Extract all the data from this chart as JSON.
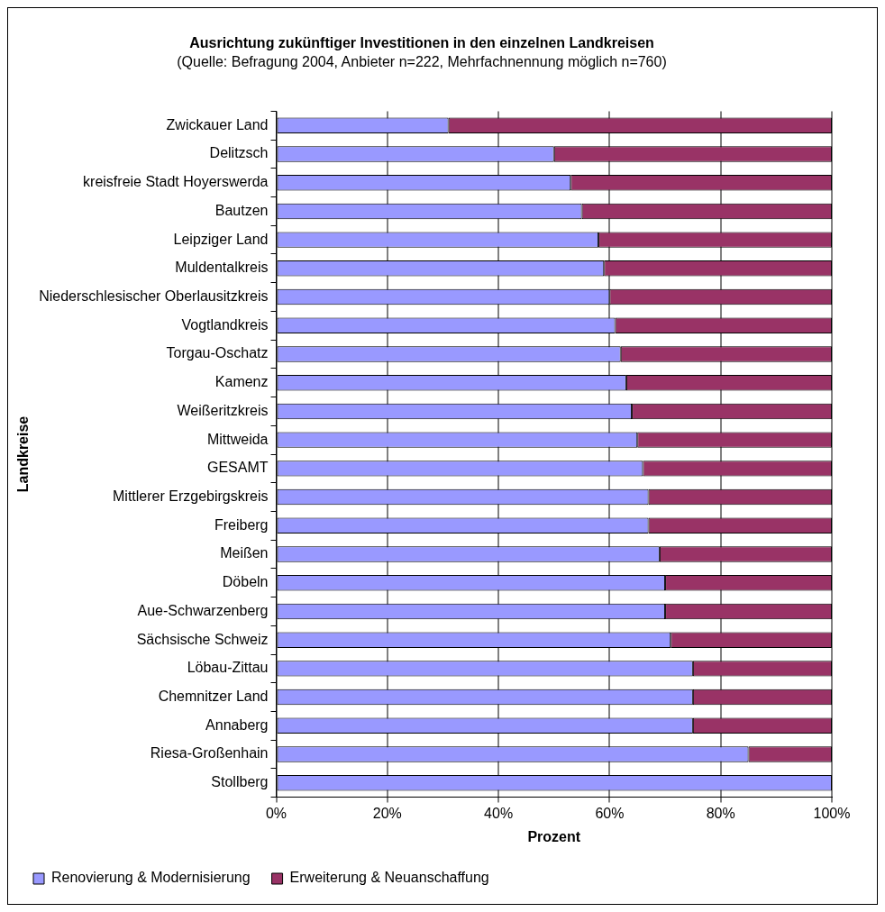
{
  "chart_data": {
    "type": "bar",
    "orientation": "horizontal",
    "stacked": true,
    "title": "Ausrichtung zukünftiger Investitionen in den einzelnen Landkreisen",
    "subtitle": "(Quelle: Befragung 2004, Anbieter n=222, Mehrfachnennung möglich n=760)",
    "xlabel": "Prozent",
    "ylabel": "Landkreise",
    "categories": [
      "Zwickauer Land",
      "Delitzsch",
      "kreisfreie Stadt Hoyerswerda",
      "Bautzen",
      "Leipziger Land",
      "Muldentalkreis",
      "Niederschlesischer Oberlausitzkreis",
      "Vogtlandkreis",
      "Torgau-Oschatz",
      "Kamenz",
      "Weißeritzkreis",
      "Mittweida",
      "GESAMT",
      "Mittlerer Erzgebirgskreis",
      "Freiberg",
      "Meißen",
      "Döbeln",
      "Aue-Schwarzenberg",
      "Sächsische Schweiz",
      "Löbau-Zittau",
      "Chemnitzer Land",
      "Annaberg",
      "Riesa-Großenhain",
      "Stollberg"
    ],
    "series": [
      {
        "name": "Renovierung & Modernisierung",
        "color": "#9999ff",
        "values": [
          31,
          50,
          53,
          55,
          58,
          59,
          60,
          61,
          62,
          63,
          64,
          65,
          66,
          67,
          67,
          69,
          70,
          70,
          71,
          75,
          75,
          75,
          85,
          100
        ]
      },
      {
        "name": "Erweiterung & Neuanschaffung",
        "color": "#993366",
        "values": [
          69,
          50,
          47,
          45,
          42,
          41,
          40,
          39,
          38,
          37,
          36,
          35,
          34,
          33,
          33,
          31,
          30,
          30,
          29,
          25,
          25,
          25,
          15,
          0
        ]
      }
    ],
    "xlim": [
      0,
      100
    ],
    "xticks": [
      {
        "value": 0,
        "label": "0%"
      },
      {
        "value": 20,
        "label": "20%"
      },
      {
        "value": 40,
        "label": "40%"
      },
      {
        "value": 60,
        "label": "60%"
      },
      {
        "value": 80,
        "label": "80%"
      },
      {
        "value": 100,
        "label": "100%"
      }
    ],
    "grid": "x",
    "legend": "bottom left"
  }
}
